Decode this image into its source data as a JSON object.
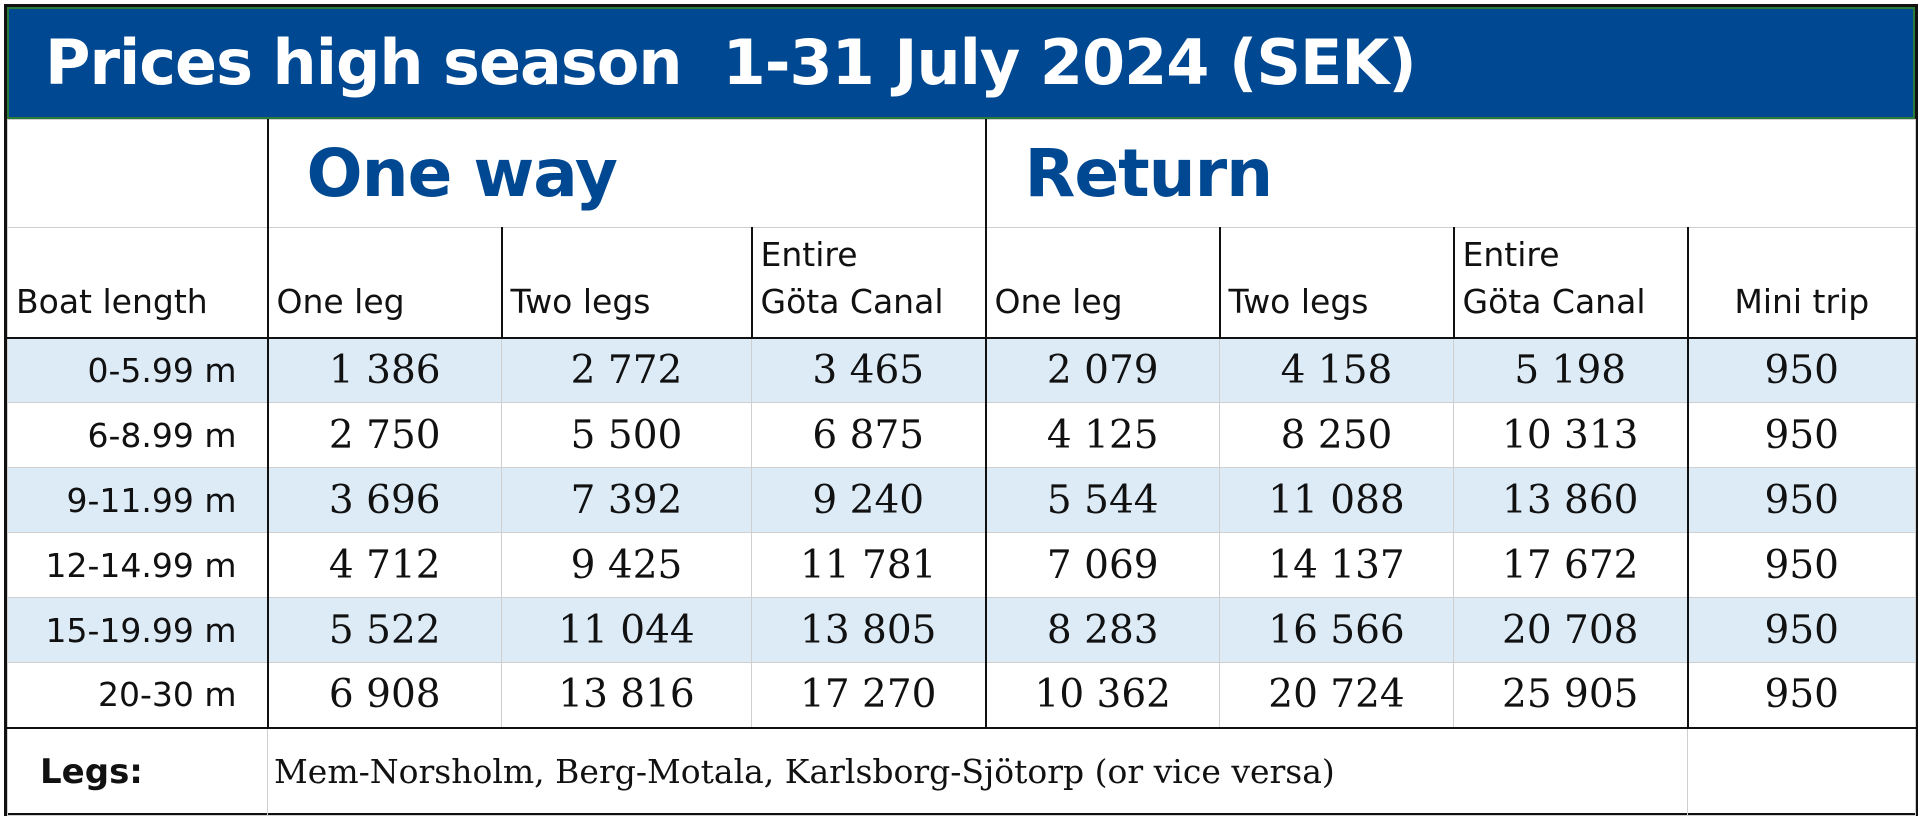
{
  "title": "Prices high season  1-31 July 2024 (SEK)",
  "groups": {
    "one_way": "One way",
    "return": "Return"
  },
  "columns": {
    "boat_length": "Boat length",
    "one_way_one_leg": "One leg",
    "one_way_two_legs": "Two legs",
    "one_way_entire_line1": "Entire",
    "one_way_entire_line2": "Göta Canal",
    "return_one_leg": "One leg",
    "return_two_legs": "Two legs",
    "return_entire_line1": "Entire",
    "return_entire_line2": "Göta Canal",
    "mini_trip": "Mini trip"
  },
  "rows": [
    {
      "length": "0-5.99 m",
      "ow1": "1 386",
      "ow2": "2 772",
      "owe": "3 465",
      "r1": "2 079",
      "r2": "4 158",
      "re": "5 198",
      "mini": "950"
    },
    {
      "length": "6-8.99 m",
      "ow1": "2 750",
      "ow2": "5 500",
      "owe": "6 875",
      "r1": "4 125",
      "r2": "8 250",
      "re": "10 313",
      "mini": "950"
    },
    {
      "length": "9-11.99 m",
      "ow1": "3 696",
      "ow2": "7 392",
      "owe": "9 240",
      "r1": "5 544",
      "r2": "11 088",
      "re": "13 860",
      "mini": "950"
    },
    {
      "length": "12-14.99 m",
      "ow1": "4 712",
      "ow2": "9 425",
      "owe": "11 781",
      "r1": "7 069",
      "r2": "14 137",
      "re": "17 672",
      "mini": "950"
    },
    {
      "length": "15-19.99 m",
      "ow1": "5 522",
      "ow2": "11 044",
      "owe": "13 805",
      "r1": "8 283",
      "r2": "16 566",
      "re": "20 708",
      "mini": "950"
    },
    {
      "length": "20-30 m",
      "ow1": "6 908",
      "ow2": "13 816",
      "owe": "17 270",
      "r1": "10 362",
      "r2": "20 724",
      "re": "25 905",
      "mini": "950"
    }
  ],
  "legs": {
    "label": "Legs:",
    "text": "Mem-Norsholm, Berg-Motala, Karlsborg-Sjötorp (or vice versa)"
  },
  "colors": {
    "title_bar": "#004891",
    "group_heading": "#004891",
    "row_shade": "#ddebf7"
  }
}
